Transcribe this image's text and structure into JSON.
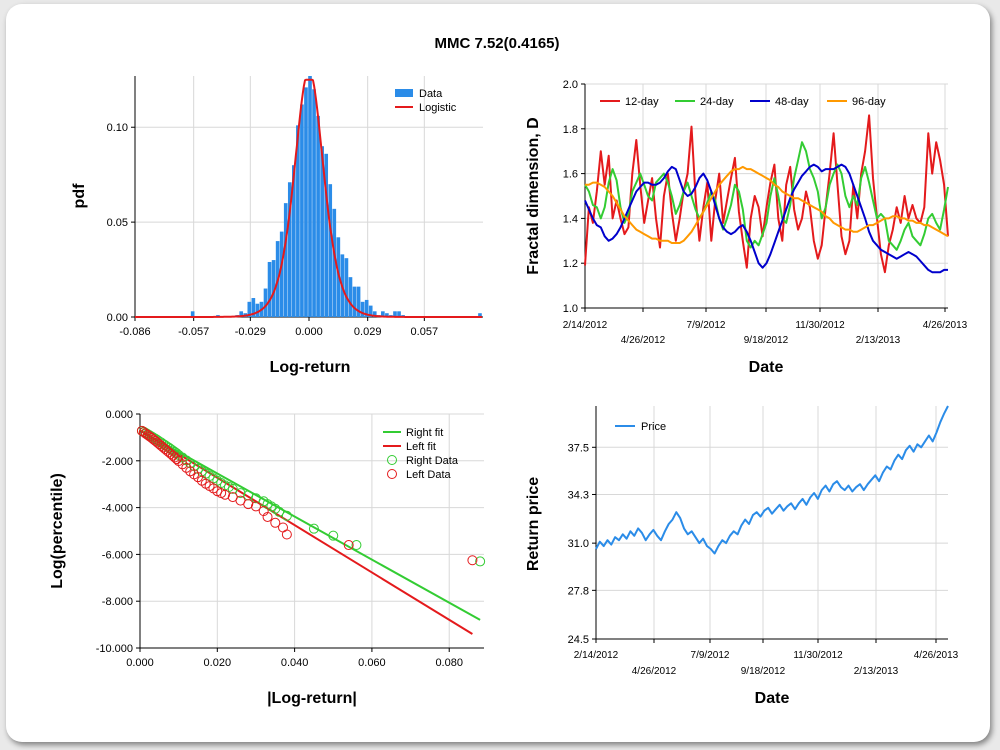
{
  "title": "MMC 7.52(0.4165)",
  "chart_data": [
    {
      "id": "pdf",
      "type": "bar",
      "xlabel": "Log-return",
      "ylabel": "pdf",
      "xlim": [
        -0.086,
        0.086
      ],
      "ylim": [
        0,
        0.127
      ],
      "xticks": [
        "-0.086",
        "-0.057",
        "-0.029",
        "0.000",
        "0.029",
        "0.057"
      ],
      "yticks": [
        "0.00",
        "0.05",
        "0.10"
      ],
      "legend": [
        "Data",
        "Logistic"
      ],
      "legend_position": "top-right",
      "bin_centers": [
        -0.0575,
        -0.045,
        -0.0355,
        -0.0335,
        -0.0315,
        -0.0295,
        -0.0275,
        -0.0255,
        -0.0235,
        -0.0215,
        -0.0195,
        -0.0175,
        -0.0155,
        -0.0135,
        -0.0115,
        -0.0095,
        -0.0075,
        -0.0055,
        -0.0035,
        -0.0015,
        0.0005,
        0.0025,
        0.0045,
        0.0065,
        0.0085,
        0.0105,
        0.0125,
        0.0145,
        0.0165,
        0.0185,
        0.0205,
        0.0225,
        0.0245,
        0.0265,
        0.0285,
        0.0305,
        0.0325,
        0.0345,
        0.0365,
        0.0385,
        0.0405,
        0.0425,
        0.0445,
        0.0465,
        0.0485,
        0.0505,
        0.0845
      ],
      "values": [
        0.003,
        0.001,
        0.001,
        0.003,
        0.002,
        0.008,
        0.01,
        0.007,
        0.008,
        0.015,
        0.029,
        0.03,
        0.04,
        0.045,
        0.06,
        0.071,
        0.08,
        0.101,
        0.112,
        0.121,
        0.127,
        0.12,
        0.106,
        0.09,
        0.086,
        0.07,
        0.057,
        0.042,
        0.033,
        0.031,
        0.021,
        0.016,
        0.016,
        0.008,
        0.009,
        0.006,
        0.003,
        0.001,
        0.003,
        0.002,
        0.001,
        0.003,
        0.003,
        0.001,
        0.0,
        0.0,
        0.002
      ],
      "logistic_scale": 0.0048
    },
    {
      "id": "fractal",
      "type": "line",
      "xlabel": "Date",
      "ylabel": "Fractal dimension, D",
      "ylim": [
        1.0,
        2.0
      ],
      "yticks": [
        "1.0",
        "1.2",
        "1.4",
        "1.6",
        "1.8",
        "2.0"
      ],
      "xticks_top": [
        "2/14/2012",
        "7/9/2012",
        "11/30/2012",
        "4/26/2013"
      ],
      "xticks_bottom": [
        "4/26/2012",
        "9/18/2012",
        "2/13/2013"
      ],
      "legend_position": "top-left",
      "series": [
        {
          "name": "12-day",
          "color": "#e41a1c",
          "values": [
            1.19,
            1.45,
            1.38,
            1.52,
            1.7,
            1.55,
            1.68,
            1.4,
            1.48,
            1.4,
            1.33,
            1.36,
            1.6,
            1.75,
            1.55,
            1.38,
            1.48,
            1.58,
            1.4,
            1.27,
            1.5,
            1.6,
            1.43,
            1.3,
            1.4,
            1.52,
            1.6,
            1.81,
            1.5,
            1.3,
            1.45,
            1.56,
            1.3,
            1.48,
            1.6,
            1.38,
            1.48,
            1.58,
            1.67,
            1.43,
            1.3,
            1.18,
            1.4,
            1.5,
            1.45,
            1.32,
            1.45,
            1.56,
            1.64,
            1.4,
            1.3,
            1.55,
            1.63,
            1.44,
            1.35,
            1.4,
            1.52,
            1.45,
            1.3,
            1.22,
            1.28,
            1.45,
            1.6,
            1.78,
            1.55,
            1.32,
            1.24,
            1.3,
            1.55,
            1.4,
            1.6,
            1.7,
            1.86,
            1.58,
            1.4,
            1.24,
            1.16,
            1.28,
            1.35,
            1.45,
            1.38,
            1.5,
            1.4,
            1.46,
            1.4,
            1.38,
            1.45,
            1.78,
            1.6,
            1.74,
            1.66,
            1.55,
            1.32
          ]
        },
        {
          "name": "24-day",
          "color": "#33cc33",
          "values": [
            1.55,
            1.52,
            1.46,
            1.45,
            1.4,
            1.45,
            1.56,
            1.62,
            1.57,
            1.45,
            1.38,
            1.42,
            1.52,
            1.56,
            1.6,
            1.55,
            1.5,
            1.48,
            1.56,
            1.58,
            1.6,
            1.56,
            1.5,
            1.42,
            1.46,
            1.52,
            1.56,
            1.5,
            1.44,
            1.4,
            1.43,
            1.47,
            1.52,
            1.48,
            1.4,
            1.35,
            1.4,
            1.46,
            1.55,
            1.52,
            1.44,
            1.3,
            1.27,
            1.3,
            1.28,
            1.33,
            1.38,
            1.5,
            1.58,
            1.5,
            1.4,
            1.38,
            1.46,
            1.58,
            1.66,
            1.74,
            1.7,
            1.62,
            1.58,
            1.52,
            1.4,
            1.45,
            1.55,
            1.6,
            1.64,
            1.6,
            1.5,
            1.45,
            1.5,
            1.46,
            1.58,
            1.63,
            1.56,
            1.48,
            1.4,
            1.42,
            1.4,
            1.3,
            1.28,
            1.26,
            1.3,
            1.35,
            1.38,
            1.32,
            1.3,
            1.28,
            1.33,
            1.4,
            1.42,
            1.38,
            1.35,
            1.44,
            1.54
          ]
        },
        {
          "name": "48-day",
          "color": "#0000cc",
          "values": [
            1.48,
            1.44,
            1.4,
            1.37,
            1.36,
            1.32,
            1.3,
            1.31,
            1.33,
            1.36,
            1.4,
            1.44,
            1.48,
            1.52,
            1.54,
            1.56,
            1.56,
            1.55,
            1.55,
            1.56,
            1.58,
            1.61,
            1.63,
            1.62,
            1.57,
            1.52,
            1.5,
            1.51,
            1.54,
            1.58,
            1.6,
            1.57,
            1.52,
            1.46,
            1.4,
            1.36,
            1.34,
            1.33,
            1.34,
            1.36,
            1.37,
            1.34,
            1.3,
            1.25,
            1.2,
            1.18,
            1.2,
            1.24,
            1.29,
            1.34,
            1.39,
            1.44,
            1.49,
            1.53,
            1.56,
            1.59,
            1.61,
            1.63,
            1.64,
            1.63,
            1.61,
            1.62,
            1.62,
            1.62,
            1.63,
            1.64,
            1.63,
            1.6,
            1.55,
            1.5,
            1.45,
            1.4,
            1.34,
            1.3,
            1.28,
            1.26,
            1.25,
            1.24,
            1.23,
            1.22,
            1.23,
            1.24,
            1.25,
            1.24,
            1.23,
            1.21,
            1.19,
            1.17,
            1.16,
            1.16,
            1.16,
            1.17,
            1.17
          ]
        },
        {
          "name": "96-day",
          "color": "#ff9900",
          "values": [
            1.55,
            1.55,
            1.56,
            1.56,
            1.55,
            1.54,
            1.52,
            1.5,
            1.47,
            1.44,
            1.41,
            1.39,
            1.37,
            1.35,
            1.34,
            1.33,
            1.32,
            1.31,
            1.31,
            1.3,
            1.3,
            1.3,
            1.29,
            1.29,
            1.29,
            1.3,
            1.32,
            1.34,
            1.37,
            1.4,
            1.43,
            1.46,
            1.49,
            1.52,
            1.55,
            1.57,
            1.59,
            1.61,
            1.62,
            1.62,
            1.63,
            1.62,
            1.62,
            1.61,
            1.6,
            1.59,
            1.58,
            1.57,
            1.55,
            1.54,
            1.52,
            1.51,
            1.5,
            1.49,
            1.49,
            1.48,
            1.47,
            1.46,
            1.45,
            1.44,
            1.43,
            1.41,
            1.4,
            1.38,
            1.37,
            1.36,
            1.35,
            1.35,
            1.34,
            1.34,
            1.35,
            1.36,
            1.37,
            1.37,
            1.38,
            1.39,
            1.4,
            1.4,
            1.41,
            1.41,
            1.4,
            1.4,
            1.39,
            1.39,
            1.38,
            1.38,
            1.37,
            1.37,
            1.36,
            1.35,
            1.34,
            1.33,
            1.32
          ]
        }
      ]
    },
    {
      "id": "tail",
      "type": "scatter",
      "xlabel": "|Log-return|",
      "ylabel": "Log(percentile)",
      "xlim": [
        0.0,
        0.089
      ],
      "ylim": [
        -10.0,
        0.0
      ],
      "xticks": [
        "0.000",
        "0.020",
        "0.040",
        "0.060",
        "0.080"
      ],
      "yticks": [
        "0.000",
        "-2.000",
        "-4.000",
        "-6.000",
        "-8.000",
        "-10.000"
      ],
      "legend": [
        "Right fit",
        "Left fit",
        "Right Data",
        "Left Data"
      ],
      "legend_position": "top-right",
      "right_fit": {
        "x": [
          0.0,
          0.088
        ],
        "y": [
          -0.7,
          -8.8
        ],
        "color": "#33cc33"
      },
      "left_fit": {
        "x": [
          0.0,
          0.086
        ],
        "y": [
          -0.7,
          -9.4
        ],
        "color": "#e41a1c"
      },
      "right_data": {
        "color": "#33cc33",
        "x": [
          0.0005,
          0.001,
          0.0015,
          0.002,
          0.0025,
          0.003,
          0.0035,
          0.004,
          0.0045,
          0.005,
          0.0055,
          0.006,
          0.0065,
          0.007,
          0.0075,
          0.008,
          0.0085,
          0.009,
          0.0095,
          0.01,
          0.011,
          0.012,
          0.013,
          0.014,
          0.015,
          0.016,
          0.017,
          0.018,
          0.019,
          0.02,
          0.021,
          0.022,
          0.023,
          0.024,
          0.026,
          0.028,
          0.03,
          0.032,
          0.033,
          0.034,
          0.035,
          0.036,
          0.038,
          0.045,
          0.05,
          0.056,
          0.088
        ],
        "y": [
          -0.72,
          -0.76,
          -0.81,
          -0.86,
          -0.91,
          -0.96,
          -1.01,
          -1.06,
          -1.11,
          -1.17,
          -1.22,
          -1.28,
          -1.33,
          -1.39,
          -1.44,
          -1.5,
          -1.56,
          -1.62,
          -1.68,
          -1.75,
          -1.86,
          -1.98,
          -2.1,
          -2.22,
          -2.34,
          -2.45,
          -2.55,
          -2.65,
          -2.75,
          -2.85,
          -2.95,
          -3.05,
          -3.12,
          -3.2,
          -3.38,
          -3.48,
          -3.6,
          -3.73,
          -3.85,
          -3.95,
          -4.05,
          -4.18,
          -4.35,
          -4.9,
          -5.2,
          -5.6,
          -6.3
        ]
      },
      "left_data": {
        "color": "#e41a1c",
        "x": [
          0.0005,
          0.001,
          0.0015,
          0.002,
          0.0025,
          0.003,
          0.0035,
          0.004,
          0.0045,
          0.005,
          0.0055,
          0.006,
          0.0065,
          0.007,
          0.0075,
          0.008,
          0.0085,
          0.009,
          0.0095,
          0.01,
          0.011,
          0.012,
          0.013,
          0.014,
          0.015,
          0.016,
          0.017,
          0.018,
          0.019,
          0.02,
          0.021,
          0.022,
          0.024,
          0.026,
          0.028,
          0.03,
          0.032,
          0.033,
          0.035,
          0.037,
          0.038,
          0.054,
          0.086
        ],
        "y": [
          -0.72,
          -0.78,
          -0.84,
          -0.9,
          -0.96,
          -1.02,
          -1.09,
          -1.15,
          -1.22,
          -1.29,
          -1.36,
          -1.43,
          -1.5,
          -1.57,
          -1.64,
          -1.71,
          -1.78,
          -1.86,
          -1.93,
          -2.01,
          -2.15,
          -2.3,
          -2.45,
          -2.58,
          -2.7,
          -2.85,
          -2.98,
          -3.08,
          -3.18,
          -3.3,
          -3.38,
          -3.45,
          -3.55,
          -3.7,
          -3.85,
          -3.95,
          -4.15,
          -4.4,
          -4.65,
          -4.85,
          -5.15,
          -5.6,
          -6.25
        ]
      }
    },
    {
      "id": "price",
      "type": "line",
      "xlabel": "Date",
      "ylabel": "Return price",
      "ylim": [
        24.5,
        40.3
      ],
      "yticks": [
        "24.5",
        "27.8",
        "31.0",
        "34.3",
        "37.5"
      ],
      "xticks_top": [
        "2/14/2012",
        "7/9/2012",
        "11/30/2012",
        "4/26/2013"
      ],
      "xticks_bottom": [
        "4/26/2012",
        "9/18/2012",
        "2/13/2013"
      ],
      "legend_position": "top-left",
      "series": [
        {
          "name": "Price",
          "color": "#2b8ce8",
          "values": [
            30.6,
            31.1,
            30.8,
            31.2,
            30.9,
            31.4,
            31.2,
            31.6,
            31.3,
            31.8,
            31.5,
            32.0,
            31.7,
            31.2,
            31.6,
            31.9,
            31.5,
            31.2,
            31.8,
            32.3,
            32.6,
            33.1,
            32.7,
            32.0,
            31.6,
            31.8,
            31.4,
            31.0,
            31.3,
            30.8,
            30.6,
            30.3,
            30.8,
            31.2,
            31.0,
            31.5,
            31.8,
            31.6,
            32.2,
            32.6,
            32.3,
            32.9,
            33.1,
            32.8,
            33.2,
            33.4,
            33.0,
            33.3,
            33.6,
            33.2,
            33.5,
            33.7,
            33.3,
            33.7,
            34.0,
            33.6,
            34.1,
            34.4,
            34.0,
            34.6,
            34.9,
            34.5,
            35.0,
            35.2,
            34.8,
            34.6,
            34.9,
            34.5,
            34.8,
            35.0,
            34.6,
            35.0,
            35.3,
            35.6,
            35.2,
            35.8,
            36.2,
            36.0,
            36.6,
            37.0,
            36.7,
            37.3,
            37.6,
            37.2,
            37.7,
            37.5,
            37.9,
            38.3,
            37.9,
            38.5,
            39.2,
            39.8,
            40.3
          ]
        }
      ]
    }
  ]
}
